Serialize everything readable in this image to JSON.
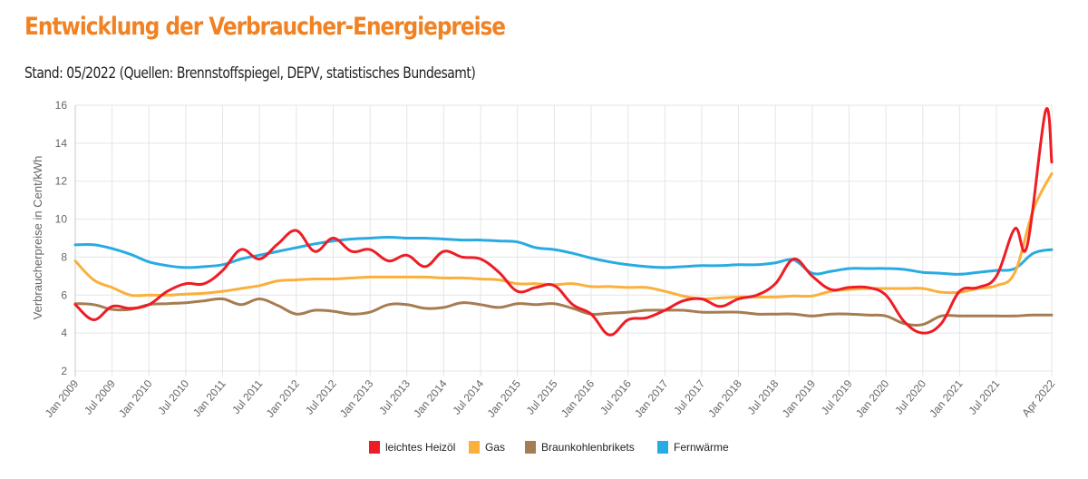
{
  "header": {
    "title": "Entwicklung der Verbraucher-Energiepreise",
    "subtitle": "Stand: 05/2022 (Quellen: Brennstoffspiegel, DEPV, statistisches Bundesamt)"
  },
  "chart_data": {
    "type": "line",
    "title": "Entwicklung der Verbraucher-Energiepreise",
    "xlabel": "",
    "ylabel": "Verbraucherpreise in Cent/kWh",
    "ylim": [
      2,
      16
    ],
    "yticks": [
      2,
      4,
      6,
      8,
      10,
      12,
      14,
      16
    ],
    "xlim": [
      "2009-01",
      "2022-04"
    ],
    "xtick_labels": [
      "Jan 2009",
      "Jul 2009",
      "Jan 2010",
      "Jul 2010",
      "Jan 2011",
      "Jul 2011",
      "Jan 2012",
      "Jul 2012",
      "Jan 2013",
      "Jul 2013",
      "Jan 2014",
      "Jul 2014",
      "Jan 2015",
      "Jul 2015",
      "Jan 2016",
      "Jul 2016",
      "Jan 2017",
      "Jul 2017",
      "Jan 2018",
      "Jul 2018",
      "Jan 2019",
      "Jul 2019",
      "Jan 2020",
      "Jul 2020",
      "Jan 2021",
      "Jul 2021",
      "Apr 2022"
    ],
    "grid": true,
    "legend_position": "bottom",
    "series": [
      {
        "name": "leichtes Heizöl",
        "color": "#ee1c25",
        "x": [
          "2009-01",
          "2009-04",
          "2009-07",
          "2009-10",
          "2010-01",
          "2010-04",
          "2010-07",
          "2010-10",
          "2011-01",
          "2011-04",
          "2011-07",
          "2011-10",
          "2012-01",
          "2012-04",
          "2012-07",
          "2012-10",
          "2013-01",
          "2013-04",
          "2013-07",
          "2013-10",
          "2014-01",
          "2014-04",
          "2014-07",
          "2014-10",
          "2015-01",
          "2015-04",
          "2015-07",
          "2015-10",
          "2016-01",
          "2016-04",
          "2016-07",
          "2016-10",
          "2017-01",
          "2017-04",
          "2017-07",
          "2017-10",
          "2018-01",
          "2018-04",
          "2018-07",
          "2018-10",
          "2019-01",
          "2019-04",
          "2019-07",
          "2019-10",
          "2020-01",
          "2020-04",
          "2020-07",
          "2020-10",
          "2021-01",
          "2021-04",
          "2021-07",
          "2021-10",
          "2021-12",
          "2022-03",
          "2022-04"
        ],
        "values": [
          5.5,
          4.7,
          5.4,
          5.3,
          5.5,
          6.2,
          6.6,
          6.6,
          7.3,
          8.4,
          7.9,
          8.7,
          9.4,
          8.3,
          9.0,
          8.3,
          8.4,
          7.8,
          8.1,
          7.5,
          8.3,
          8.0,
          7.9,
          7.2,
          6.2,
          6.4,
          6.5,
          5.5,
          5.0,
          3.9,
          4.7,
          4.8,
          5.2,
          5.7,
          5.8,
          5.4,
          5.8,
          6.0,
          6.6,
          7.9,
          7.0,
          6.3,
          6.4,
          6.4,
          6.0,
          4.6,
          4.0,
          4.5,
          6.2,
          6.4,
          7.0,
          9.5,
          8.6,
          15.7,
          13.0
        ]
      },
      {
        "name": "Gas",
        "color": "#fbb03b",
        "x": [
          "2009-01",
          "2009-04",
          "2009-07",
          "2009-10",
          "2010-01",
          "2010-04",
          "2010-07",
          "2010-10",
          "2011-01",
          "2011-04",
          "2011-07",
          "2011-10",
          "2012-01",
          "2012-04",
          "2012-07",
          "2012-10",
          "2013-01",
          "2013-04",
          "2013-07",
          "2013-10",
          "2014-01",
          "2014-04",
          "2014-07",
          "2014-10",
          "2015-01",
          "2015-04",
          "2015-07",
          "2015-10",
          "2016-01",
          "2016-04",
          "2016-07",
          "2016-10",
          "2017-01",
          "2017-04",
          "2017-07",
          "2017-10",
          "2018-01",
          "2018-04",
          "2018-07",
          "2018-10",
          "2019-01",
          "2019-04",
          "2019-07",
          "2019-10",
          "2020-01",
          "2020-04",
          "2020-07",
          "2020-10",
          "2021-01",
          "2021-04",
          "2021-07",
          "2021-10",
          "2022-01",
          "2022-04"
        ],
        "values": [
          7.8,
          6.8,
          6.4,
          6.0,
          6.0,
          6.0,
          6.05,
          6.1,
          6.2,
          6.35,
          6.5,
          6.75,
          6.8,
          6.85,
          6.85,
          6.9,
          6.95,
          6.95,
          6.95,
          6.95,
          6.9,
          6.9,
          6.85,
          6.8,
          6.6,
          6.6,
          6.55,
          6.6,
          6.45,
          6.45,
          6.4,
          6.4,
          6.2,
          5.95,
          5.8,
          5.85,
          5.9,
          5.9,
          5.9,
          5.95,
          5.95,
          6.2,
          6.3,
          6.35,
          6.35,
          6.35,
          6.35,
          6.15,
          6.15,
          6.35,
          6.5,
          7.2,
          10.5,
          12.4
        ]
      },
      {
        "name": "Braunkohlenbrikets",
        "color": "#a67c52",
        "x": [
          "2009-01",
          "2009-04",
          "2009-07",
          "2009-10",
          "2010-01",
          "2010-04",
          "2010-07",
          "2010-10",
          "2011-01",
          "2011-04",
          "2011-07",
          "2011-10",
          "2012-01",
          "2012-04",
          "2012-07",
          "2012-10",
          "2013-01",
          "2013-04",
          "2013-07",
          "2013-10",
          "2014-01",
          "2014-04",
          "2014-07",
          "2014-10",
          "2015-01",
          "2015-04",
          "2015-07",
          "2015-10",
          "2016-01",
          "2016-04",
          "2016-07",
          "2016-10",
          "2017-01",
          "2017-04",
          "2017-07",
          "2017-10",
          "2018-01",
          "2018-04",
          "2018-07",
          "2018-10",
          "2019-01",
          "2019-04",
          "2019-07",
          "2019-10",
          "2020-01",
          "2020-04",
          "2020-07",
          "2020-10",
          "2021-01",
          "2021-04",
          "2021-07",
          "2021-10",
          "2022-01",
          "2022-04"
        ],
        "values": [
          5.55,
          5.5,
          5.25,
          5.25,
          5.5,
          5.55,
          5.6,
          5.7,
          5.8,
          5.5,
          5.8,
          5.45,
          5.0,
          5.2,
          5.15,
          5.0,
          5.1,
          5.5,
          5.5,
          5.3,
          5.35,
          5.6,
          5.5,
          5.35,
          5.55,
          5.5,
          5.55,
          5.3,
          5.0,
          5.05,
          5.1,
          5.2,
          5.2,
          5.2,
          5.1,
          5.1,
          5.1,
          5.0,
          5.0,
          5.0,
          4.9,
          5.0,
          5.0,
          4.95,
          4.9,
          4.5,
          4.45,
          4.9,
          4.9,
          4.9,
          4.9,
          4.9,
          4.95,
          4.95
        ]
      },
      {
        "name": "Fernwärme",
        "color": "#29abe2",
        "x": [
          "2009-01",
          "2009-04",
          "2009-07",
          "2009-10",
          "2010-01",
          "2010-04",
          "2010-07",
          "2010-10",
          "2011-01",
          "2011-04",
          "2011-07",
          "2011-10",
          "2012-01",
          "2012-04",
          "2012-07",
          "2012-10",
          "2013-01",
          "2013-04",
          "2013-07",
          "2013-10",
          "2014-01",
          "2014-04",
          "2014-07",
          "2014-10",
          "2015-01",
          "2015-04",
          "2015-07",
          "2015-10",
          "2016-01",
          "2016-04",
          "2016-07",
          "2016-10",
          "2017-01",
          "2017-04",
          "2017-07",
          "2017-10",
          "2018-01",
          "2018-04",
          "2018-07",
          "2018-10",
          "2019-01",
          "2019-04",
          "2019-07",
          "2019-10",
          "2020-01",
          "2020-04",
          "2020-07",
          "2020-10",
          "2021-01",
          "2021-04",
          "2021-07",
          "2021-10",
          "2022-01",
          "2022-04"
        ],
        "values": [
          8.65,
          8.65,
          8.45,
          8.15,
          7.75,
          7.55,
          7.45,
          7.5,
          7.6,
          7.9,
          8.1,
          8.3,
          8.5,
          8.7,
          8.85,
          8.95,
          9.0,
          9.05,
          9.0,
          9.0,
          8.95,
          8.9,
          8.9,
          8.85,
          8.8,
          8.5,
          8.4,
          8.2,
          7.95,
          7.75,
          7.6,
          7.5,
          7.45,
          7.5,
          7.55,
          7.55,
          7.6,
          7.6,
          7.7,
          7.85,
          7.15,
          7.25,
          7.4,
          7.4,
          7.4,
          7.35,
          7.2,
          7.15,
          7.1,
          7.2,
          7.3,
          7.4,
          8.2,
          8.4
        ]
      }
    ]
  }
}
